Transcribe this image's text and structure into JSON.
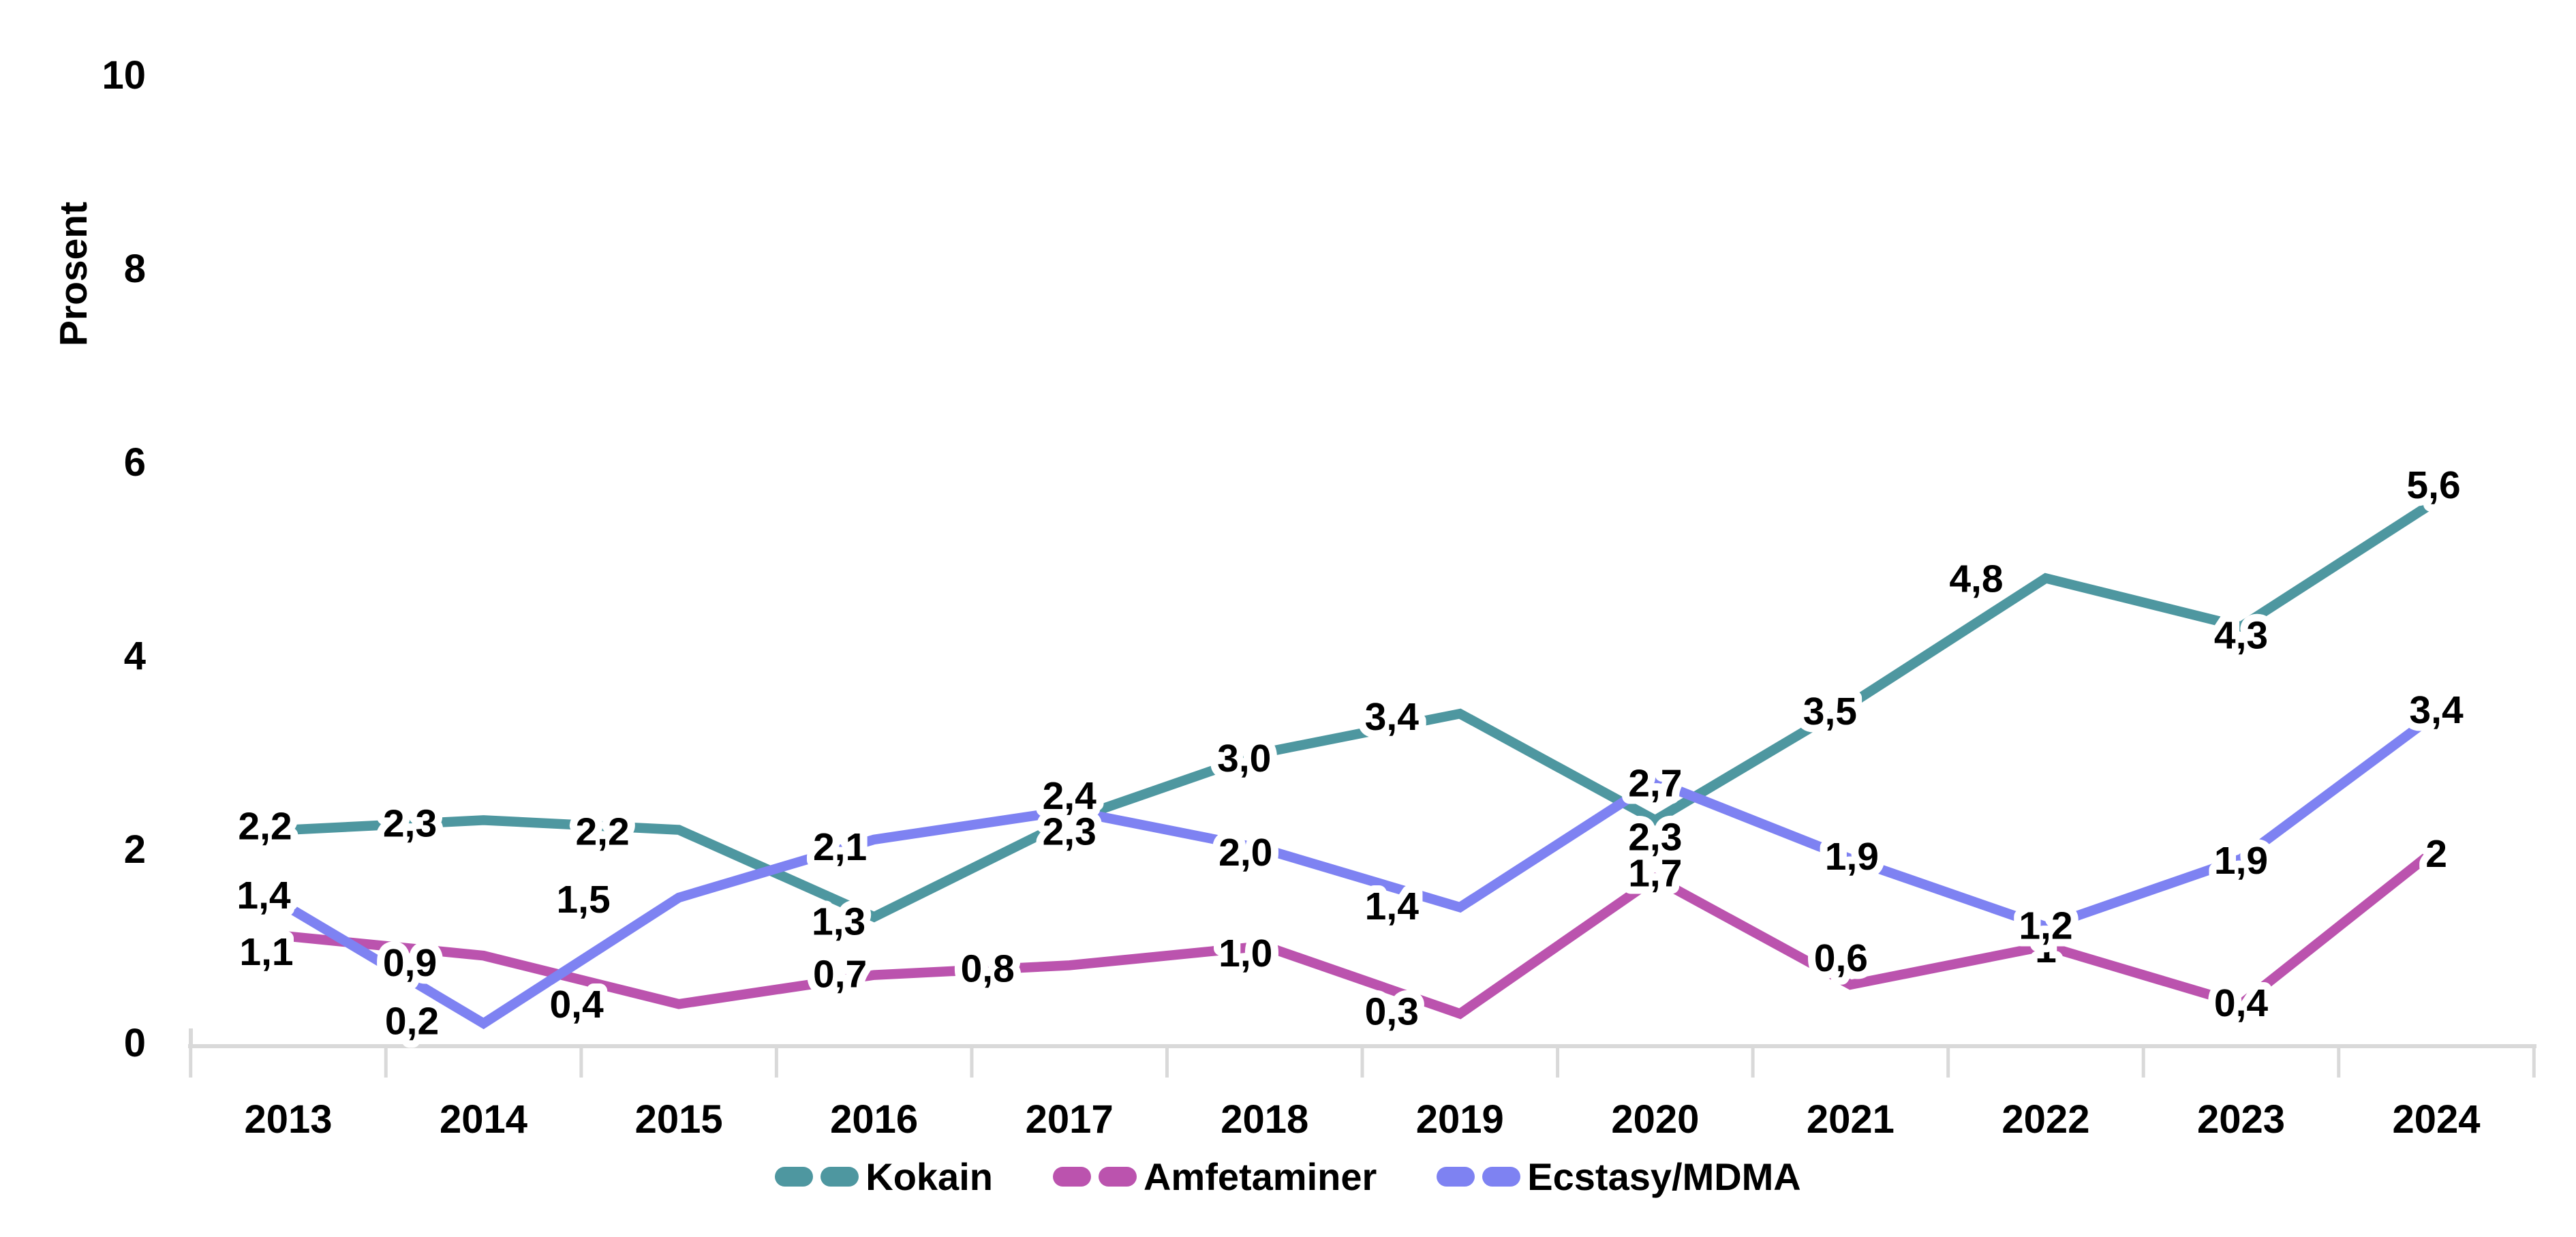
{
  "chart_data": {
    "type": "line",
    "title": "",
    "ylabel": "Prosent",
    "xlabel": "",
    "ylim": [
      0,
      10
    ],
    "yticks": [
      0,
      2,
      4,
      6,
      8,
      10
    ],
    "grid": "off",
    "legend_position": "bottom-center",
    "axis_color": "#D9D9D9",
    "label_color": "#000000",
    "label_halo_color": "#FFFFFF",
    "categories": [
      "2013",
      "2014",
      "2015",
      "2016",
      "2017",
      "2018",
      "2019",
      "2020",
      "2021",
      "2022",
      "2023",
      "2024"
    ],
    "series": [
      {
        "name": "Kokain",
        "color": "#4E97A0",
        "values": [
          2.2,
          2.3,
          2.2,
          1.3,
          2.3,
          3.0,
          3.4,
          2.3,
          3.5,
          4.8,
          4.3,
          5.6
        ],
        "labels": [
          "2,2",
          "2,3",
          "2,2",
          "1,3",
          "2,3",
          "3,0",
          "3,4",
          "2,3",
          "3,5",
          "4,8",
          "4,3",
          "5,6"
        ],
        "label_offsets": [
          [
            -34,
            -6
          ],
          [
            -108,
            4
          ],
          [
            -112,
            2
          ],
          [
            -52,
            6
          ],
          [
            0,
            16
          ],
          [
            -30,
            8
          ],
          [
            -100,
            4
          ],
          [
            0,
            24
          ],
          [
            -30,
            10
          ],
          [
            -102,
            0
          ],
          [
            0,
            12
          ],
          [
            -4,
            -24
          ]
        ]
      },
      {
        "name": "Amfetaminer",
        "color": "#BB53AE",
        "values": [
          1.1,
          0.9,
          0.4,
          0.7,
          0.8,
          1.0,
          0.3,
          1.7,
          0.6,
          1.0,
          0.4,
          2.0
        ],
        "labels": [
          "1,1",
          "0,9",
          "0,4",
          "0,7",
          "0,8",
          "1,0",
          "0,3",
          "1,7",
          "0,6",
          "1",
          "0,4",
          "2"
        ],
        "label_offsets": [
          [
            -32,
            22
          ],
          [
            -108,
            10
          ],
          [
            -150,
            0
          ],
          [
            -50,
            -2
          ],
          [
            -120,
            4
          ],
          [
            -28,
            10
          ],
          [
            -100,
            -4
          ],
          [
            0,
            -8
          ],
          [
            -14,
            -40
          ],
          [
            0,
            4
          ],
          [
            0,
            -2
          ],
          [
            0,
            6
          ]
        ]
      },
      {
        "name": "Ecstasy/MDMA",
        "color": "#7E82F2",
        "values": [
          1.4,
          0.2,
          1.5,
          2.1,
          2.4,
          2.0,
          1.4,
          2.7,
          1.9,
          1.2,
          1.9,
          3.4
        ],
        "labels": [
          "1,4",
          "0,2",
          "1,5",
          "2,1",
          "2,4",
          "2,0",
          "1,4",
          "2,7",
          "1,9",
          "1,2",
          "1,9",
          "3,4"
        ],
        "label_offsets": [
          [
            -36,
            -18
          ],
          [
            -105,
            -4
          ],
          [
            -140,
            2
          ],
          [
            -50,
            10
          ],
          [
            0,
            -22
          ],
          [
            -28,
            4
          ],
          [
            -100,
            -2
          ],
          [
            0,
            2
          ],
          [
            2,
            -4
          ],
          [
            0,
            -2
          ],
          [
            0,
            2
          ],
          [
            0,
            -6
          ]
        ]
      }
    ]
  },
  "legend": {
    "items": [
      {
        "label": "Kokain"
      },
      {
        "label": "Amfetaminer"
      },
      {
        "label": "Ecstasy/MDMA"
      }
    ]
  }
}
